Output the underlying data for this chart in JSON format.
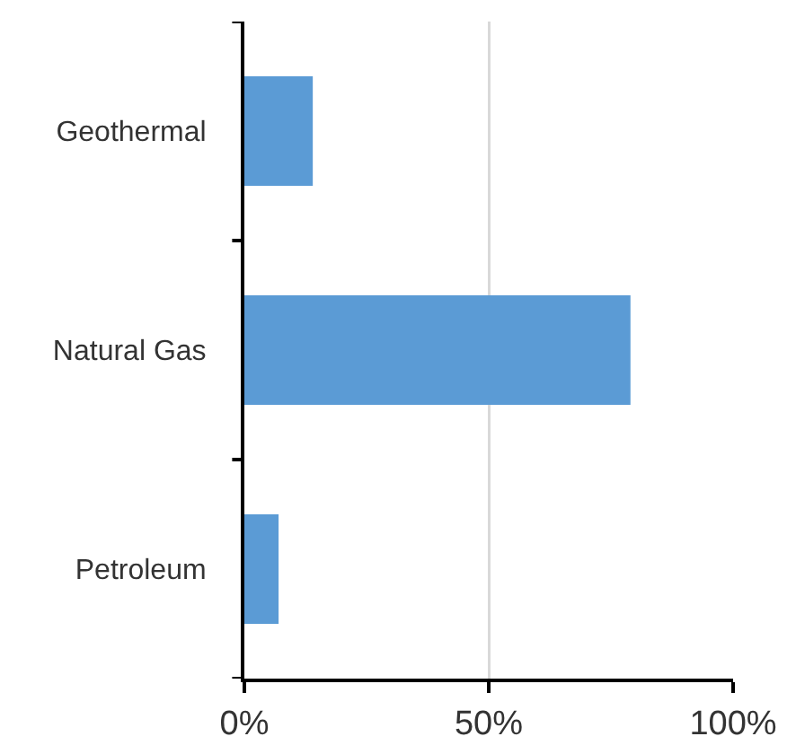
{
  "chart_data": {
    "type": "bar",
    "orientation": "horizontal",
    "categories": [
      "Geothermal",
      "Natural Gas",
      "Petroleum"
    ],
    "values": [
      14,
      79,
      7
    ],
    "color": "#5b9bd5",
    "xlim": [
      0,
      100
    ],
    "xticks": [
      {
        "value": 0,
        "label": "0%"
      },
      {
        "value": 50,
        "label": "50%"
      },
      {
        "value": 100,
        "label": "100%"
      }
    ],
    "grid": "x"
  }
}
